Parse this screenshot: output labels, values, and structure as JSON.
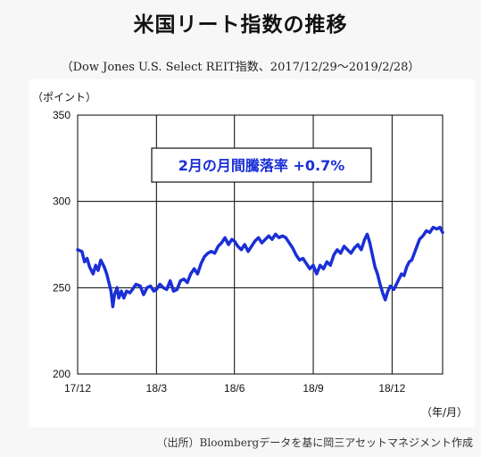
{
  "header": {
    "title": "米国リート指数の推移",
    "subtitle": "（Dow Jones U.S. Select REIT指数、2017/12/29～2019/2/28）"
  },
  "footer": {
    "source": "（出所）Bloombergデータを基に岡三アセットマネジメント作成"
  },
  "colors": {
    "line": "#1a2fd6",
    "grid": "#000000",
    "annotation_text": "#1a2fd6"
  },
  "chart_data": {
    "type": "line",
    "ylabel": "（ポイント）",
    "xlabel": "（年/月）",
    "ylim": [
      200,
      350
    ],
    "yticks": [
      200,
      250,
      300,
      350
    ],
    "xlim": [
      "2017-12-29",
      "2019-02-28"
    ],
    "xticks": [
      {
        "date": "2017-12-29",
        "label": "17/12"
      },
      {
        "date": "2018-03-31",
        "label": "18/3"
      },
      {
        "date": "2018-06-30",
        "label": "18/6"
      },
      {
        "date": "2018-09-30",
        "label": "18/9"
      },
      {
        "date": "2018-12-31",
        "label": "18/12"
      }
    ],
    "grid": true,
    "annotation": "2月の月間騰落率 +0.7%",
    "series": [
      {
        "color": "#1a2fd6",
        "points": [
          [
            "2017-12-29",
            272
          ],
          [
            "2018-01-03",
            271
          ],
          [
            "2018-01-06",
            265
          ],
          [
            "2018-01-09",
            267
          ],
          [
            "2018-01-12",
            262
          ],
          [
            "2018-01-16",
            258
          ],
          [
            "2018-01-19",
            263
          ],
          [
            "2018-01-22",
            260
          ],
          [
            "2018-01-25",
            266
          ],
          [
            "2018-01-29",
            262
          ],
          [
            "2018-02-01",
            258
          ],
          [
            "2018-02-04",
            252
          ],
          [
            "2018-02-06",
            248
          ],
          [
            "2018-02-08",
            239
          ],
          [
            "2018-02-10",
            246
          ],
          [
            "2018-02-13",
            250
          ],
          [
            "2018-02-15",
            244
          ],
          [
            "2018-02-18",
            248
          ],
          [
            "2018-02-21",
            244
          ],
          [
            "2018-02-24",
            248
          ],
          [
            "2018-02-28",
            247
          ],
          [
            "2018-03-03",
            249
          ],
          [
            "2018-03-07",
            252
          ],
          [
            "2018-03-12",
            251
          ],
          [
            "2018-03-16",
            246
          ],
          [
            "2018-03-20",
            250
          ],
          [
            "2018-03-24",
            251
          ],
          [
            "2018-03-28",
            248
          ],
          [
            "2018-03-31",
            249
          ],
          [
            "2018-04-04",
            252
          ],
          [
            "2018-04-08",
            250
          ],
          [
            "2018-04-12",
            249
          ],
          [
            "2018-04-16",
            254
          ],
          [
            "2018-04-20",
            248
          ],
          [
            "2018-04-24",
            249
          ],
          [
            "2018-04-28",
            254
          ],
          [
            "2018-05-02",
            255
          ],
          [
            "2018-05-06",
            253
          ],
          [
            "2018-05-10",
            258
          ],
          [
            "2018-05-14",
            261
          ],
          [
            "2018-05-18",
            258
          ],
          [
            "2018-05-22",
            264
          ],
          [
            "2018-05-26",
            268
          ],
          [
            "2018-05-30",
            270
          ],
          [
            "2018-06-03",
            271
          ],
          [
            "2018-06-07",
            270
          ],
          [
            "2018-06-11",
            274
          ],
          [
            "2018-06-15",
            276
          ],
          [
            "2018-06-19",
            279
          ],
          [
            "2018-06-23",
            275
          ],
          [
            "2018-06-27",
            278
          ],
          [
            "2018-06-30",
            277
          ],
          [
            "2018-07-04",
            274
          ],
          [
            "2018-07-08",
            272
          ],
          [
            "2018-07-12",
            275
          ],
          [
            "2018-07-16",
            271
          ],
          [
            "2018-07-20",
            274
          ],
          [
            "2018-07-24",
            277
          ],
          [
            "2018-07-28",
            279
          ],
          [
            "2018-08-01",
            276
          ],
          [
            "2018-08-05",
            278
          ],
          [
            "2018-08-09",
            280
          ],
          [
            "2018-08-13",
            278
          ],
          [
            "2018-08-17",
            281
          ],
          [
            "2018-08-21",
            279
          ],
          [
            "2018-08-25",
            280
          ],
          [
            "2018-08-29",
            279
          ],
          [
            "2018-09-02",
            276
          ],
          [
            "2018-09-06",
            273
          ],
          [
            "2018-09-10",
            269
          ],
          [
            "2018-09-14",
            266
          ],
          [
            "2018-09-18",
            267
          ],
          [
            "2018-09-22",
            264
          ],
          [
            "2018-09-26",
            261
          ],
          [
            "2018-09-30",
            263
          ],
          [
            "2018-10-04",
            258
          ],
          [
            "2018-10-08",
            263
          ],
          [
            "2018-10-12",
            261
          ],
          [
            "2018-10-16",
            265
          ],
          [
            "2018-10-20",
            263
          ],
          [
            "2018-10-24",
            269
          ],
          [
            "2018-10-28",
            272
          ],
          [
            "2018-11-01",
            270
          ],
          [
            "2018-11-05",
            274
          ],
          [
            "2018-11-09",
            272
          ],
          [
            "2018-11-13",
            270
          ],
          [
            "2018-11-17",
            273
          ],
          [
            "2018-11-21",
            275
          ],
          [
            "2018-11-25",
            272
          ],
          [
            "2018-11-29",
            278
          ],
          [
            "2018-12-02",
            281
          ],
          [
            "2018-12-05",
            276
          ],
          [
            "2018-12-08",
            269
          ],
          [
            "2018-12-11",
            262
          ],
          [
            "2018-12-14",
            258
          ],
          [
            "2018-12-17",
            252
          ],
          [
            "2018-12-20",
            247
          ],
          [
            "2018-12-23",
            243
          ],
          [
            "2018-12-26",
            248
          ],
          [
            "2018-12-29",
            251
          ],
          [
            "2019-01-02",
            249
          ],
          [
            "2019-01-05",
            252
          ],
          [
            "2019-01-08",
            255
          ],
          [
            "2019-01-11",
            258
          ],
          [
            "2019-01-14",
            257
          ],
          [
            "2019-01-17",
            262
          ],
          [
            "2019-01-20",
            265
          ],
          [
            "2019-01-23",
            266
          ],
          [
            "2019-01-26",
            270
          ],
          [
            "2019-01-29",
            274
          ],
          [
            "2019-02-01",
            278
          ],
          [
            "2019-02-05",
            280
          ],
          [
            "2019-02-09",
            283
          ],
          [
            "2019-02-13",
            282
          ],
          [
            "2019-02-17",
            285
          ],
          [
            "2019-02-21",
            284
          ],
          [
            "2019-02-25",
            285
          ],
          [
            "2019-02-28",
            282
          ]
        ]
      }
    ]
  }
}
